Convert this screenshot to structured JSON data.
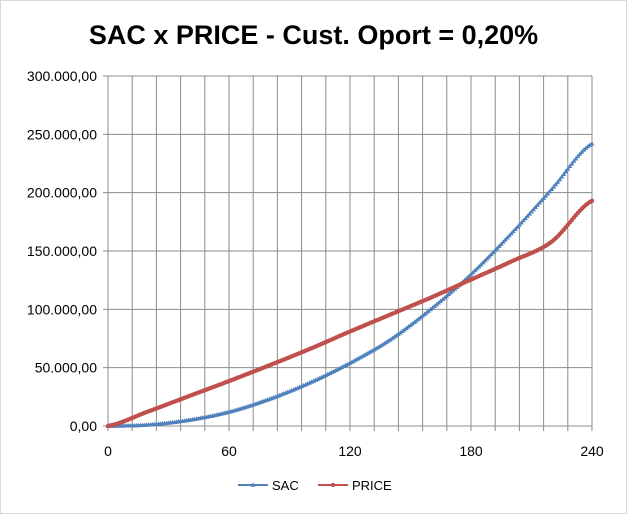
{
  "chart_data": {
    "type": "line",
    "title": "SAC x PRICE - Cust. Oport = 0,20%",
    "xlabel": "",
    "ylabel": "",
    "xlim": [
      0,
      240
    ],
    "ylim": [
      0,
      300000
    ],
    "x_ticks": [
      0,
      60,
      120,
      180,
      240
    ],
    "x_tick_labels": [
      "0",
      "60",
      "120",
      "180",
      "240"
    ],
    "y_ticks": [
      0,
      50000,
      100000,
      150000,
      200000,
      250000,
      300000
    ],
    "y_tick_labels": [
      "0,00",
      "50.000,00",
      "100.000,00",
      "150.000,00",
      "200.000,00",
      "250.000,00",
      "300.000,00"
    ],
    "grid": true,
    "legend_position": "bottom",
    "x": [
      0,
      20,
      40,
      60,
      80,
      100,
      120,
      140,
      160,
      180,
      200,
      220,
      240
    ],
    "series": [
      {
        "name": "SAC",
        "color": "#4f81bd",
        "marker": "triangle",
        "values": [
          0,
          1000,
          5000,
          12000,
          23000,
          37000,
          54000,
          74000,
          100000,
          130000,
          165000,
          203000,
          242000
        ]
      },
      {
        "name": "PRICE",
        "color": "#c0504d",
        "marker": "circle",
        "values": [
          0,
          12500,
          25500,
          38500,
          52000,
          66000,
          81000,
          95500,
          110000,
          125500,
          141000,
          158000,
          193000
        ]
      }
    ]
  }
}
